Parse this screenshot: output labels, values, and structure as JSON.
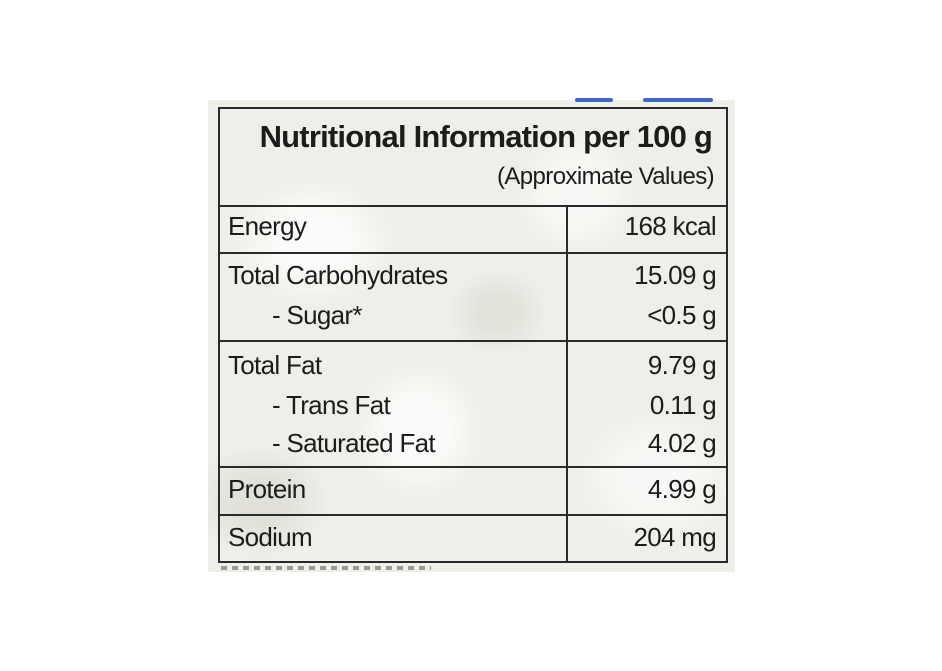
{
  "label": {
    "title": "Nutritional Information per 100 g",
    "subtitle": "(Approximate Values)",
    "sections": [
      {
        "rows": [
          {
            "name": "Energy",
            "value": "168 kcal"
          }
        ]
      },
      {
        "rows": [
          {
            "name": "Total Carbohydrates",
            "value": "15.09 g"
          },
          {
            "name": "- Sugar*",
            "value": "<0.5 g"
          }
        ]
      },
      {
        "rows": [
          {
            "name": "Total Fat",
            "value": "9.79 g"
          },
          {
            "name": "- Trans Fat",
            "value": "0.11 g"
          },
          {
            "name": "- Saturated Fat",
            "value": "4.02 g"
          }
        ]
      },
      {
        "rows": [
          {
            "name": "Protein",
            "value": "4.99 g"
          }
        ]
      },
      {
        "rows": [
          {
            "name": "Sodium",
            "value": "204 mg"
          }
        ]
      }
    ]
  },
  "colors": {
    "border": "#2a2a2a",
    "text": "#1c1c1c",
    "paper": "#efeee8",
    "accent": "#3f66c4"
  }
}
